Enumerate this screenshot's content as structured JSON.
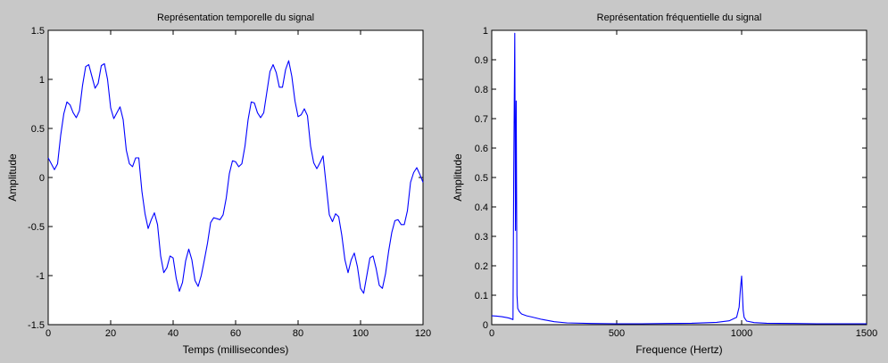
{
  "chart_data": [
    {
      "type": "line",
      "title": "Représentation temporelle du signal",
      "xlabel": "Temps (millisecondes)",
      "ylabel": "Amplitude",
      "xlim": [
        0,
        120
      ],
      "ylim": [
        -1.5,
        1.5
      ],
      "xticks": [
        "0",
        "20",
        "40",
        "60",
        "80",
        "100",
        "120"
      ],
      "yticks": [
        "1.5",
        "1",
        "0.5",
        "0",
        "-0.5",
        "-1",
        "-1.5"
      ],
      "grid": false,
      "series": [
        {
          "color": "#0000ff",
          "x": [
            0,
            1,
            2,
            3,
            4,
            5,
            6,
            7,
            8,
            9,
            10,
            11,
            12,
            13,
            14,
            15,
            16,
            17,
            18,
            19,
            20,
            21,
            22,
            23,
            24,
            25,
            26,
            27,
            28,
            29,
            30,
            31,
            32,
            33,
            34,
            35,
            36,
            37,
            38,
            39,
            40,
            41,
            42,
            43,
            44,
            45,
            46,
            47,
            48,
            49,
            50,
            51,
            52,
            53,
            54,
            55,
            56,
            57,
            58,
            59,
            60,
            61,
            62,
            63,
            64,
            65,
            66,
            67,
            68,
            69,
            70,
            71,
            72,
            73,
            74,
            75,
            76,
            77,
            78,
            79,
            80,
            81,
            82,
            83,
            84,
            85,
            86,
            87,
            88,
            89,
            90,
            91,
            92,
            93,
            94,
            95,
            96,
            97,
            98,
            99,
            100,
            101,
            102,
            103,
            104,
            105,
            106,
            107,
            108,
            109,
            110,
            111,
            112,
            113,
            114,
            115,
            116,
            117,
            118,
            119,
            120
          ],
          "y": [
            0.2,
            0.14,
            0.08,
            0.14,
            0.43,
            0.65,
            0.77,
            0.74,
            0.66,
            0.61,
            0.68,
            0.94,
            1.13,
            1.15,
            1.03,
            0.91,
            0.96,
            1.14,
            1.16,
            1.0,
            0.71,
            0.6,
            0.66,
            0.72,
            0.59,
            0.28,
            0.14,
            0.11,
            0.2,
            0.2,
            -0.14,
            -0.37,
            -0.52,
            -0.43,
            -0.36,
            -0.48,
            -0.8,
            -0.97,
            -0.92,
            -0.8,
            -0.82,
            -1.03,
            -1.16,
            -1.07,
            -0.85,
            -0.73,
            -0.84,
            -1.05,
            -1.11,
            -1.0,
            -0.84,
            -0.67,
            -0.46,
            -0.41,
            -0.42,
            -0.43,
            -0.38,
            -0.21,
            0.04,
            0.17,
            0.16,
            0.11,
            0.14,
            0.32,
            0.59,
            0.77,
            0.76,
            0.66,
            0.61,
            0.66,
            0.87,
            1.08,
            1.15,
            1.07,
            0.92,
            0.92,
            1.1,
            1.19,
            1.03,
            0.78,
            0.62,
            0.64,
            0.7,
            0.63,
            0.32,
            0.15,
            0.09,
            0.15,
            0.22,
            -0.08,
            -0.38,
            -0.45,
            -0.37,
            -0.4,
            -0.59,
            -0.84,
            -0.97,
            -0.84,
            -0.77,
            -0.91,
            -1.13,
            -1.18,
            -1.0,
            -0.82,
            -0.8,
            -0.93,
            -1.1,
            -1.13,
            -0.98,
            -0.75,
            -0.56,
            -0.44,
            -0.43,
            -0.48,
            -0.48,
            -0.34,
            -0.05,
            0.05,
            0.1,
            0.03,
            -0.05
          ]
        }
      ]
    },
    {
      "type": "line",
      "title": "Représentation fréquentielle du signal",
      "xlabel": "Frequence (Hertz)",
      "ylabel": "Amplitude",
      "xlim": [
        0,
        1500
      ],
      "ylim": [
        0,
        1
      ],
      "xticks": [
        "0",
        "500",
        "1000",
        "1500"
      ],
      "yticks": [
        "1",
        "0.9",
        "0.8",
        "0.7",
        "0.6",
        "0.5",
        "0.4",
        "0.3",
        "0.2",
        "0.1",
        "0"
      ],
      "grid": false,
      "series": [
        {
          "color": "#0000ff",
          "x": [
            0,
            20,
            40,
            60,
            70,
            80,
            85,
            88,
            92,
            95,
            98,
            101,
            104,
            107,
            110,
            115,
            120,
            140,
            160,
            200,
            250,
            300,
            400,
            500,
            600,
            700,
            800,
            900,
            950,
            980,
            990,
            995,
            1000,
            1003,
            1006,
            1010,
            1020,
            1050,
            1100,
            1200,
            1300,
            1400,
            1500
          ],
          "y": [
            0.03,
            0.029,
            0.027,
            0.024,
            0.022,
            0.019,
            0.017,
            0.5,
            0.99,
            0.32,
            0.76,
            0.1,
            0.055,
            0.05,
            0.045,
            0.04,
            0.036,
            0.03,
            0.026,
            0.018,
            0.01,
            0.006,
            0.004,
            0.003,
            0.003,
            0.004,
            0.005,
            0.008,
            0.013,
            0.025,
            0.06,
            0.12,
            0.165,
            0.11,
            0.05,
            0.025,
            0.012,
            0.007,
            0.005,
            0.004,
            0.003,
            0.003,
            0.003
          ]
        }
      ]
    }
  ]
}
